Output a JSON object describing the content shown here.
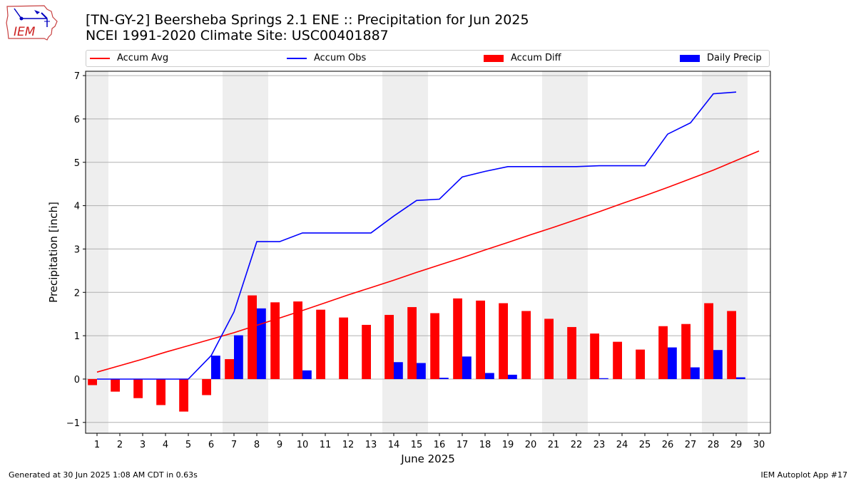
{
  "logo": {
    "text": "IEM"
  },
  "header": {
    "title_line1": "[TN-GY-2] Beersheba Springs 2.1 ENE :: Precipitation for Jun 2025",
    "title_line2": "NCEI 1991-2020 Climate Site: USC00401887"
  },
  "footer": {
    "left": "Generated at 30 Jun 2025 1:08 AM CDT in 0.63s",
    "right": "IEM Autoplot App #17"
  },
  "chart_data": {
    "type": "bar",
    "xlabel": "June 2025",
    "ylabel": "Precipitation [inch]",
    "xlim": [
      0.5,
      30.5
    ],
    "ylim": [
      -1.25,
      7.1
    ],
    "yticks": [
      -1,
      0,
      1,
      2,
      3,
      4,
      5,
      6,
      7
    ],
    "ytick_labels": [
      "−1",
      "0",
      "1",
      "2",
      "3",
      "4",
      "5",
      "6",
      "7"
    ],
    "grid": "horizontal",
    "legend_placement": "top",
    "weekend_shading": [
      [
        0.5,
        1.5
      ],
      [
        6.5,
        8.5
      ],
      [
        13.5,
        15.5
      ],
      [
        20.5,
        22.5
      ],
      [
        27.5,
        29.5
      ]
    ],
    "x": [
      1,
      2,
      3,
      4,
      5,
      6,
      7,
      8,
      9,
      10,
      11,
      12,
      13,
      14,
      15,
      16,
      17,
      18,
      19,
      20,
      21,
      22,
      23,
      24,
      25,
      26,
      27,
      28,
      29,
      30
    ],
    "series": [
      {
        "name": "Accum Avg",
        "kind": "line",
        "color": "#ff0000",
        "values": [
          0.16,
          0.31,
          0.46,
          0.62,
          0.77,
          0.92,
          1.07,
          1.24,
          1.41,
          1.58,
          1.76,
          1.94,
          2.11,
          2.28,
          2.46,
          2.63,
          2.8,
          2.98,
          3.15,
          3.33,
          3.5,
          3.68,
          3.86,
          4.05,
          4.23,
          4.42,
          4.62,
          4.82,
          5.04,
          5.26
        ]
      },
      {
        "name": "Accum Obs",
        "kind": "line",
        "color": "#0000ff",
        "values": [
          0.0,
          0.0,
          0.0,
          0.0,
          0.0,
          0.54,
          1.55,
          3.17,
          3.17,
          3.37,
          3.37,
          3.37,
          3.37,
          3.76,
          4.12,
          4.15,
          4.66,
          4.79,
          4.9,
          4.9,
          4.9,
          4.9,
          4.92,
          4.92,
          4.92,
          5.65,
          5.91,
          6.58,
          6.62,
          null
        ]
      },
      {
        "name": "Accum Diff",
        "kind": "bar",
        "color": "#ff0000",
        "values": [
          -0.14,
          -0.29,
          -0.44,
          -0.6,
          -0.75,
          -0.37,
          0.46,
          1.93,
          1.77,
          1.79,
          1.6,
          1.42,
          1.25,
          1.48,
          1.66,
          1.52,
          1.86,
          1.81,
          1.75,
          1.57,
          1.39,
          1.2,
          1.05,
          0.86,
          0.68,
          1.22,
          1.27,
          1.75,
          1.57,
          null
        ]
      },
      {
        "name": "Daily Precip",
        "kind": "bar",
        "color": "#0000ff",
        "values": [
          0,
          0,
          0,
          0,
          0,
          0.54,
          1.01,
          1.63,
          0,
          0.2,
          0,
          0,
          0,
          0.39,
          0.37,
          0.03,
          0.52,
          0.14,
          0.1,
          0,
          0,
          0,
          0.02,
          0,
          0,
          0.73,
          0.27,
          0.67,
          0.04,
          null
        ]
      }
    ]
  }
}
